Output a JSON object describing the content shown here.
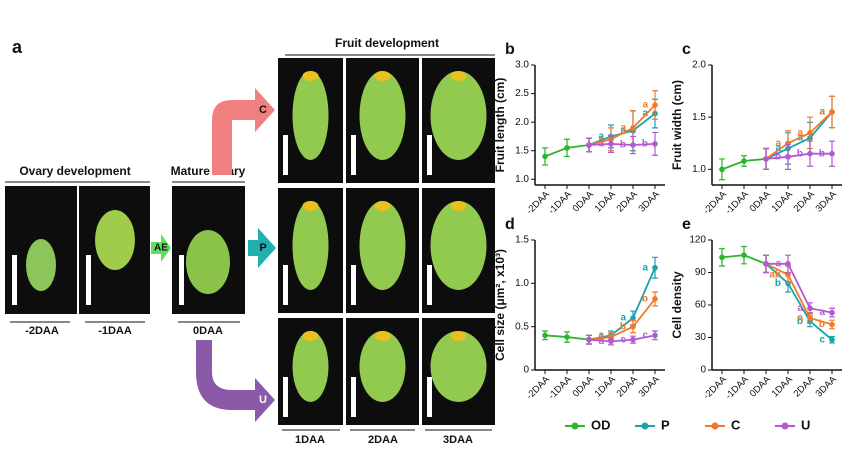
{
  "figure": {
    "panel": "a",
    "ovary_title": "Ovary development",
    "mature_title": "Mature ovary",
    "fruit_title": "Fruit development",
    "ovary_labels": [
      "-2DAA",
      "-1DAA"
    ],
    "mature_label": "0DAA",
    "fruit_labels": [
      "1DAA",
      "2DAA",
      "3DAA"
    ],
    "treatment": "AE",
    "branches": [
      "C",
      "P",
      "U"
    ]
  },
  "chart_data": [
    {
      "type": "line",
      "panel": "b",
      "ylabel": "Fruit length (cm)",
      "categories": [
        "-2DAA",
        "-1DAA",
        "0DAA",
        "1DAA",
        "2DAA",
        "3DAA"
      ],
      "ylim": [
        0.9,
        3.0
      ],
      "yticks": [
        {
          "value": 1.0,
          "label": "1.0"
        },
        {
          "value": 1.5,
          "label": "1.5"
        },
        {
          "value": 2.0,
          "label": "2.0"
        },
        {
          "value": 2.5,
          "label": "2.5"
        },
        {
          "value": 3.0,
          "label": "3.0"
        }
      ],
      "series": [
        {
          "name": "OD",
          "color": "#2db52d",
          "values": [
            1.4,
            1.55,
            1.6,
            null,
            null,
            null
          ],
          "errors": [
            0.15,
            0.15,
            0.12,
            null,
            null,
            null
          ],
          "letters": [
            null,
            null,
            null,
            null,
            null,
            null
          ]
        },
        {
          "name": "P",
          "color": "#1ba3ab",
          "values": [
            null,
            null,
            1.6,
            1.75,
            1.85,
            2.15
          ],
          "errors": [
            null,
            null,
            0.12,
            0.2,
            0.35,
            0.25
          ],
          "letters": [
            null,
            null,
            null,
            "a",
            "a",
            "a"
          ]
        },
        {
          "name": "C",
          "color": "#f07a2a",
          "values": [
            null,
            null,
            1.6,
            1.7,
            1.9,
            2.3
          ],
          "errors": [
            null,
            null,
            0.12,
            0.2,
            0.3,
            0.25
          ],
          "letters": [
            null,
            null,
            null,
            "a",
            "a",
            "a"
          ]
        },
        {
          "name": "U",
          "color": "#b25ad2",
          "values": [
            null,
            null,
            1.6,
            1.62,
            1.6,
            1.62
          ],
          "errors": [
            null,
            null,
            0.12,
            0.15,
            0.15,
            0.2
          ],
          "letters": [
            null,
            null,
            null,
            "a",
            "b",
            "b"
          ]
        }
      ]
    },
    {
      "type": "line",
      "panel": "c",
      "ylabel": "Fruit width (cm)",
      "categories": [
        "-2DAA",
        "-1DAA",
        "0DAA",
        "1DAA",
        "2DAA",
        "3DAA"
      ],
      "ylim": [
        0.85,
        2.0
      ],
      "yticks": [
        {
          "value": 1.0,
          "label": "1.0"
        },
        {
          "value": 1.5,
          "label": "1.5"
        },
        {
          "value": 2.0,
          "label": "2.0"
        }
      ],
      "series": [
        {
          "name": "OD",
          "color": "#2db52d",
          "values": [
            1.0,
            1.08,
            1.1,
            null,
            null,
            null
          ],
          "errors": [
            0.1,
            0.05,
            0.1,
            null,
            null,
            null
          ],
          "letters": [
            null,
            null,
            null,
            null,
            null,
            null
          ]
        },
        {
          "name": "P",
          "color": "#1ba3ab",
          "values": [
            null,
            null,
            1.1,
            1.2,
            1.3,
            1.55
          ],
          "errors": [
            null,
            null,
            0.1,
            0.15,
            0.15,
            0.15
          ],
          "letters": [
            null,
            null,
            null,
            "a",
            "a",
            "a"
          ]
        },
        {
          "name": "C",
          "color": "#f07a2a",
          "values": [
            null,
            null,
            1.1,
            1.25,
            1.35,
            1.55
          ],
          "errors": [
            null,
            null,
            0.1,
            0.12,
            0.15,
            0.15
          ],
          "letters": [
            null,
            null,
            null,
            "a",
            "a",
            "a"
          ]
        },
        {
          "name": "U",
          "color": "#b25ad2",
          "values": [
            null,
            null,
            1.1,
            1.12,
            1.15,
            1.15
          ],
          "errors": [
            null,
            null,
            0.1,
            0.12,
            0.12,
            0.12
          ],
          "letters": [
            null,
            null,
            null,
            "b",
            "b",
            "b"
          ]
        }
      ]
    },
    {
      "type": "line",
      "panel": "d",
      "ylabel": "Cell size (μm², x10³)",
      "categories": [
        "-2DAA",
        "-1DAA",
        "0DAA",
        "1DAA",
        "2DAA",
        "3DAA"
      ],
      "ylim": [
        0,
        1.5
      ],
      "yticks": [
        0,
        0.5,
        {
          "value": 1.0,
          "label": "1.0"
        },
        1.5
      ],
      "series": [
        {
          "name": "OD",
          "color": "#2db52d",
          "values": [
            0.4,
            0.38,
            0.35,
            null,
            null,
            null
          ],
          "errors": [
            0.05,
            0.06,
            0.05,
            null,
            null,
            null
          ],
          "letters": [
            null,
            null,
            null,
            null,
            null,
            null
          ]
        },
        {
          "name": "P",
          "color": "#1ba3ab",
          "values": [
            null,
            null,
            0.35,
            0.4,
            0.6,
            1.18
          ],
          "errors": [
            null,
            null,
            0.05,
            0.05,
            0.08,
            0.12
          ],
          "letters": [
            null,
            null,
            null,
            "a",
            "a",
            "a"
          ]
        },
        {
          "name": "C",
          "color": "#f07a2a",
          "values": [
            null,
            null,
            0.35,
            0.38,
            0.5,
            0.82
          ],
          "errors": [
            null,
            null,
            0.05,
            0.05,
            0.07,
            0.08
          ],
          "letters": [
            null,
            null,
            null,
            "a",
            "b",
            "b"
          ]
        },
        {
          "name": "U",
          "color": "#b25ad2",
          "values": [
            null,
            null,
            0.35,
            0.33,
            0.35,
            0.4
          ],
          "errors": [
            null,
            null,
            0.05,
            0.04,
            0.04,
            0.05
          ],
          "letters": [
            null,
            null,
            null,
            "a",
            "c",
            "c"
          ]
        }
      ]
    },
    {
      "type": "line",
      "panel": "e",
      "ylabel": "Cell density",
      "categories": [
        "-2DAA",
        "-1DAA",
        "0DAA",
        "1DAA",
        "2DAA",
        "3DAA"
      ],
      "ylim": [
        0,
        120
      ],
      "yticks": [
        0,
        30,
        60,
        90,
        120
      ],
      "series": [
        {
          "name": "OD",
          "color": "#2db52d",
          "values": [
            104,
            106,
            98,
            null,
            null,
            null
          ],
          "errors": [
            8,
            8,
            8,
            null,
            null,
            null
          ],
          "letters": [
            null,
            null,
            null,
            null,
            null,
            null
          ]
        },
        {
          "name": "P",
          "color": "#1ba3ab",
          "values": [
            null,
            null,
            98,
            80,
            45,
            28
          ],
          "errors": [
            null,
            null,
            8,
            8,
            5,
            3
          ],
          "letters": [
            null,
            null,
            null,
            "b",
            "b",
            "c"
          ]
        },
        {
          "name": "C",
          "color": "#f07a2a",
          "values": [
            null,
            null,
            98,
            88,
            48,
            42
          ],
          "errors": [
            null,
            null,
            8,
            8,
            5,
            4
          ],
          "letters": [
            null,
            null,
            null,
            "ab",
            "a",
            "b"
          ]
        },
        {
          "name": "U",
          "color": "#b25ad2",
          "values": [
            null,
            null,
            98,
            98,
            57,
            53
          ],
          "errors": [
            null,
            null,
            8,
            8,
            5,
            4
          ],
          "letters": [
            null,
            null,
            null,
            "a",
            "a",
            "a"
          ]
        }
      ]
    }
  ]
}
